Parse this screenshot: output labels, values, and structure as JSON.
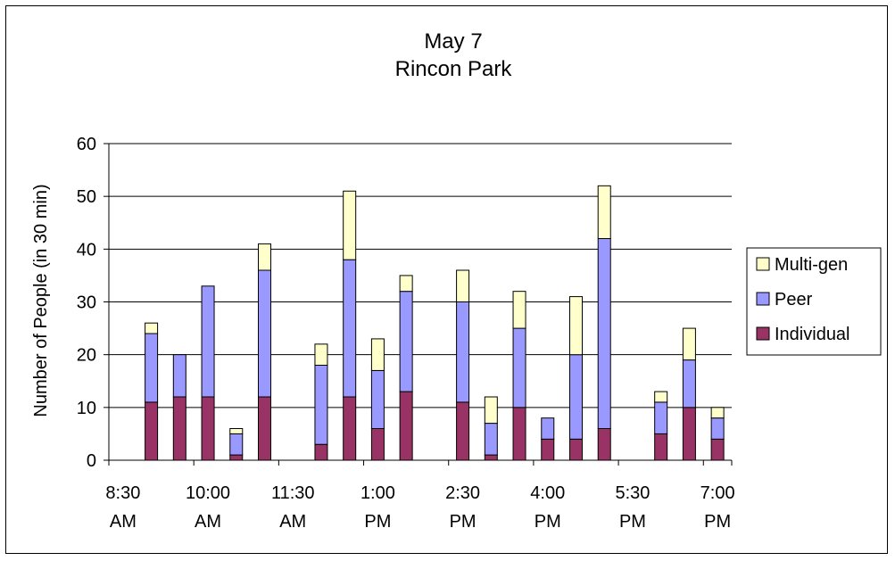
{
  "chart_data": {
    "type": "bar",
    "stacked": true,
    "title": "May 7",
    "subtitle": "Rincon Park",
    "ylabel": "Number of People (in 30 min)",
    "xlabel": "",
    "ylim": [
      0,
      60
    ],
    "yticks": [
      0,
      10,
      20,
      30,
      40,
      50,
      60
    ],
    "grid": true,
    "legend_position": "right",
    "x_tick_labels": [
      {
        "line1": "8:30",
        "line2": "AM"
      },
      {
        "line1": "10:00",
        "line2": "AM"
      },
      {
        "line1": "11:30",
        "line2": "AM"
      },
      {
        "line1": "1:00",
        "line2": "PM"
      },
      {
        "line1": "2:30",
        "line2": "PM"
      },
      {
        "line1": "4:00",
        "line2": "PM"
      },
      {
        "line1": "5:30",
        "line2": "PM"
      },
      {
        "line1": "7:00",
        "line2": "PM"
      }
    ],
    "categories": [
      "8:30 AM",
      "9:00 AM",
      "9:30 AM",
      "10:00 AM",
      "10:30 AM",
      "11:00 AM",
      "11:30 AM",
      "12:00 PM",
      "12:30 PM",
      "1:00 PM",
      "1:30 PM",
      "2:00 PM",
      "2:30 PM",
      "3:00 PM",
      "3:30 PM",
      "4:00 PM",
      "4:30 PM",
      "5:00 PM",
      "5:30 PM",
      "6:00 PM",
      "6:30 PM",
      "7:00 PM"
    ],
    "series": [
      {
        "name": "Individual",
        "color": "#993366",
        "values": [
          0,
          11,
          12,
          12,
          1,
          12,
          0,
          3,
          12,
          6,
          13,
          0,
          11,
          1,
          10,
          4,
          4,
          6,
          0,
          5,
          10,
          4
        ]
      },
      {
        "name": "Peer",
        "color": "#9999ff",
        "values": [
          0,
          13,
          8,
          21,
          4,
          24,
          0,
          15,
          26,
          11,
          19,
          0,
          19,
          6,
          15,
          4,
          16,
          36,
          0,
          6,
          9,
          4
        ]
      },
      {
        "name": "Multi-gen",
        "color": "#ffffcc",
        "values": [
          0,
          2,
          0,
          0,
          1,
          5,
          0,
          4,
          13,
          6,
          3,
          0,
          6,
          5,
          7,
          0,
          11,
          10,
          0,
          2,
          6,
          2
        ]
      }
    ]
  }
}
